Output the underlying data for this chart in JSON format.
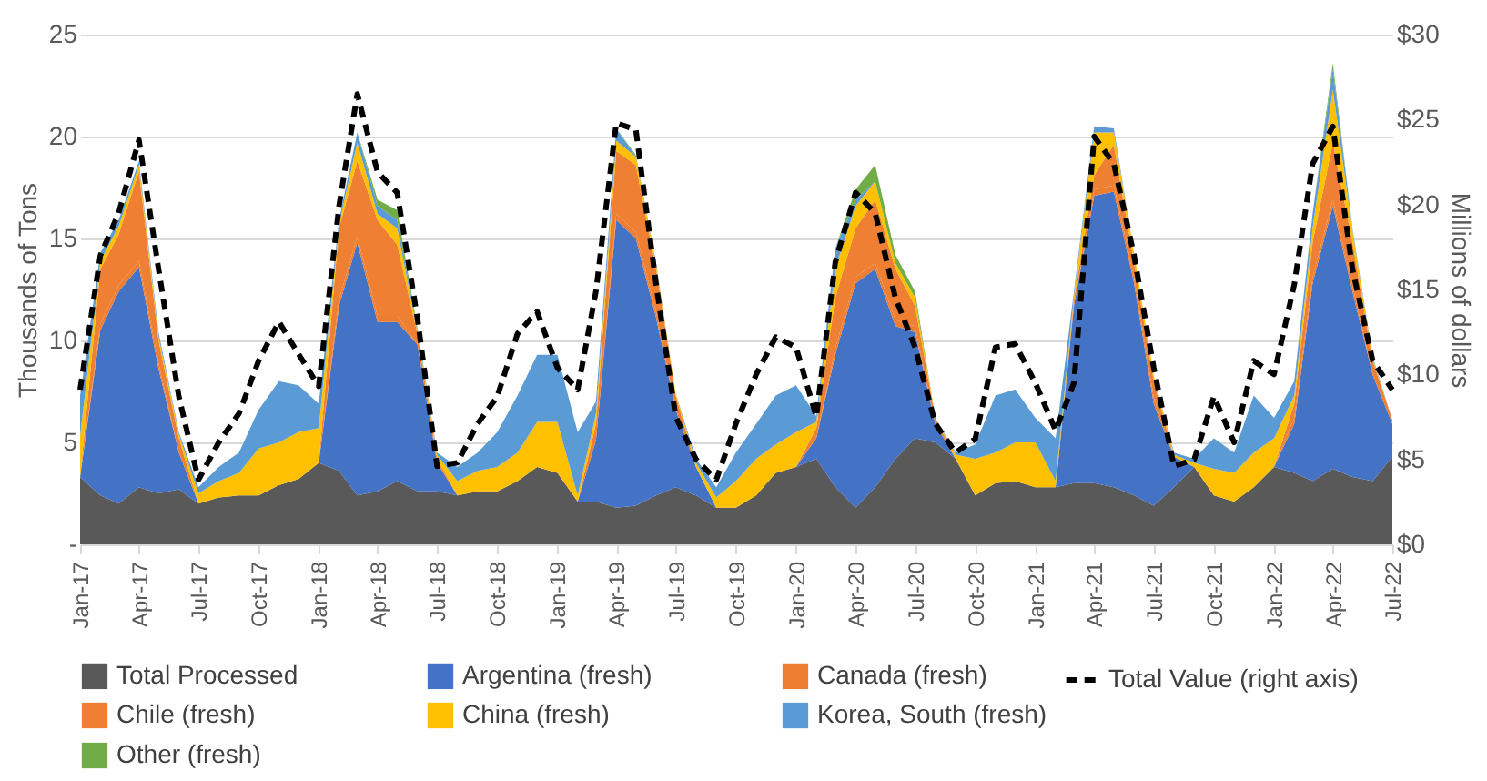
{
  "chart_data": {
    "type": "area",
    "stacked": true,
    "ylabel": "Thousands of Tons",
    "y2label": "Millions of dollars",
    "x": [
      "2017-01",
      "2017-02",
      "2017-03",
      "2017-04",
      "2017-05",
      "2017-06",
      "2017-07",
      "2017-08",
      "2017-09",
      "2017-10",
      "2017-11",
      "2017-12",
      "2018-01",
      "2018-02",
      "2018-03",
      "2018-04",
      "2018-05",
      "2018-06",
      "2018-07",
      "2018-08",
      "2018-09",
      "2018-10",
      "2018-11",
      "2018-12",
      "2019-01",
      "2019-02",
      "2019-03",
      "2019-04",
      "2019-05",
      "2019-06",
      "2019-07",
      "2019-08",
      "2019-09",
      "2019-10",
      "2019-11",
      "2019-12",
      "2020-01",
      "2020-02",
      "2020-03",
      "2020-04",
      "2020-05",
      "2020-06",
      "2020-07",
      "2020-08",
      "2020-09",
      "2020-10",
      "2020-11",
      "2020-12",
      "2021-01",
      "2021-02",
      "2021-03",
      "2021-04",
      "2021-05",
      "2021-06",
      "2021-07",
      "2021-08",
      "2021-09",
      "2021-10",
      "2021-11",
      "2021-12",
      "2022-01",
      "2022-02",
      "2022-03",
      "2022-04",
      "2022-05",
      "2022-06",
      "2022-07"
    ],
    "xlim": [
      "2017-01",
      "2022-07"
    ],
    "xticks": [
      {
        "value": "2017-01",
        "label": "Jan-17"
      },
      {
        "value": "2017-04",
        "label": "Apr-17"
      },
      {
        "value": "2017-07",
        "label": "Jul-17"
      },
      {
        "value": "2017-10",
        "label": "Oct-17"
      },
      {
        "value": "2018-01",
        "label": "Jan-18"
      },
      {
        "value": "2018-04",
        "label": "Apr-18"
      },
      {
        "value": "2018-07",
        "label": "Jul-18"
      },
      {
        "value": "2018-10",
        "label": "Oct-18"
      },
      {
        "value": "2019-01",
        "label": "Jan-19"
      },
      {
        "value": "2019-04",
        "label": "Apr-19"
      },
      {
        "value": "2019-07",
        "label": "Jul-19"
      },
      {
        "value": "2019-10",
        "label": "Oct-19"
      },
      {
        "value": "2020-01",
        "label": "Jan-20"
      },
      {
        "value": "2020-04",
        "label": "Apr-20"
      },
      {
        "value": "2020-07",
        "label": "Jul-20"
      },
      {
        "value": "2020-10",
        "label": "Oct-20"
      },
      {
        "value": "2021-01",
        "label": "Jan-21"
      },
      {
        "value": "2021-04",
        "label": "Apr-21"
      },
      {
        "value": "2021-07",
        "label": "Jul-21"
      },
      {
        "value": "2021-10",
        "label": "Oct-21"
      },
      {
        "value": "2022-01",
        "label": "Jan-22"
      },
      {
        "value": "2022-04",
        "label": "Apr-22"
      },
      {
        "value": "2022-07",
        "label": "Jul-22"
      }
    ],
    "ylim": [
      0,
      25
    ],
    "yticks": [
      {
        "value": 0,
        "label": "-"
      },
      5,
      10,
      15,
      20,
      25
    ],
    "y2lim": [
      0,
      30
    ],
    "y2ticks": [
      {
        "value": 0,
        "label": "$0"
      },
      {
        "value": 5,
        "label": "$5"
      },
      {
        "value": 10,
        "label": "$10"
      },
      {
        "value": 15,
        "label": "$15"
      },
      {
        "value": 20,
        "label": "$20"
      },
      {
        "value": 25,
        "label": "$25"
      },
      {
        "value": 30,
        "label": "$30"
      }
    ],
    "grid": "y",
    "legend": "bottom",
    "marker": "none",
    "series": [
      {
        "name": "Total Processed",
        "color": "#595959",
        "values": [
          3.3,
          2.4,
          2.0,
          2.8,
          2.5,
          2.7,
          2.0,
          2.3,
          2.4,
          2.4,
          2.9,
          3.2,
          4.0,
          3.6,
          2.4,
          2.6,
          3.1,
          2.6,
          2.6,
          2.4,
          2.6,
          2.6,
          3.1,
          3.8,
          3.5,
          2.1,
          2.1,
          1.8,
          1.9,
          2.4,
          2.8,
          2.4,
          1.8,
          1.8,
          2.4,
          3.5,
          3.8,
          4.2,
          2.8,
          1.8,
          2.8,
          4.2,
          5.2,
          5.0,
          4.2,
          2.4,
          3.0,
          3.1,
          2.8,
          2.8,
          3.0,
          3.0,
          2.8,
          2.4,
          1.9,
          2.8,
          3.8,
          2.4,
          2.1,
          2.8,
          3.8,
          3.5,
          3.1,
          3.7,
          3.3,
          3.1,
          4.3
        ]
      },
      {
        "name": "Argentina (fresh)",
        "color": "#4472c4",
        "values": [
          0,
          8.1,
          10.4,
          10.8,
          6.1,
          1.8,
          0,
          0,
          0,
          0,
          0,
          0,
          0,
          8.1,
          12.4,
          8.3,
          7.8,
          7.2,
          1.4,
          0,
          0,
          0,
          0,
          0,
          0,
          0,
          3.0,
          14.1,
          13.1,
          8.7,
          3.8,
          1.4,
          0,
          0,
          0,
          0,
          0,
          1.0,
          6.5,
          11.0,
          10.7,
          6.5,
          5.2,
          0.9,
          0,
          0,
          0,
          0,
          0,
          0,
          8.7,
          14.1,
          14.5,
          10.4,
          5.0,
          1.5,
          0,
          0,
          0,
          0,
          0,
          2.4,
          9.7,
          12.9,
          9.1,
          5.2,
          1.6
        ]
      },
      {
        "name": "Canada (fresh)",
        "color": "#ed7d31",
        "values": [
          0,
          0.3,
          0.3,
          0.3,
          0.3,
          0,
          0,
          0,
          0,
          0,
          0,
          0,
          0,
          0.3,
          0.3,
          0.3,
          0.3,
          0,
          0,
          0,
          0,
          0,
          0,
          0,
          0,
          0,
          0,
          0.3,
          0.3,
          0.3,
          0,
          0,
          0,
          0,
          0,
          0,
          0,
          0,
          0.3,
          0.3,
          0.3,
          0.3,
          0.3,
          0,
          0,
          0,
          0,
          0,
          0,
          0,
          0,
          0.3,
          0.3,
          0.3,
          0.3,
          0,
          0,
          0,
          0,
          0,
          0,
          0.3,
          0.3,
          0.3,
          0.3,
          0,
          0
        ]
      },
      {
        "name": "Chile (fresh)",
        "color": "#ee7f33",
        "values": [
          0,
          2.7,
          2.5,
          4.4,
          1.1,
          0.7,
          0,
          0,
          0,
          0,
          0,
          0,
          0,
          3.5,
          3.7,
          4.7,
          3.5,
          0.5,
          0.2,
          0,
          0,
          0,
          0,
          0,
          0,
          0,
          0.8,
          3.1,
          3.3,
          2.1,
          0.7,
          0,
          0,
          0,
          0,
          0,
          0,
          0.5,
          2.5,
          2.4,
          3.1,
          2.5,
          1.0,
          0.3,
          0,
          0,
          0,
          0,
          0,
          0,
          0.3,
          0.7,
          2.0,
          0.7,
          0.8,
          0,
          0,
          0,
          0,
          0,
          0,
          0.7,
          1.7,
          2.8,
          2.1,
          0.7,
          0.2
        ]
      },
      {
        "name": "China (fresh)",
        "color": "#ffc000",
        "values": [
          2.0,
          0.4,
          0.4,
          0.3,
          0.2,
          0.2,
          0.5,
          0.8,
          1.1,
          2.3,
          2.1,
          2.3,
          1.7,
          0.2,
          0.9,
          0.3,
          0.8,
          0.1,
          0.2,
          0.7,
          1.0,
          1.2,
          1.4,
          2.2,
          2.5,
          0.3,
          0.5,
          0.5,
          0.4,
          0.2,
          0.1,
          0.2,
          0.5,
          1.3,
          1.8,
          1.4,
          1.7,
          0.3,
          1.4,
          1.1,
          0.9,
          0.3,
          0.4,
          0,
          0.2,
          1.8,
          1.5,
          1.9,
          2.2,
          0.3,
          0.2,
          2.1,
          0.6,
          0.5,
          0.3,
          0.1,
          0.2,
          1.3,
          1.4,
          1.7,
          1.4,
          0.4,
          0.7,
          2.6,
          0.6,
          0.1,
          0
        ]
      },
      {
        "name": "Korea, South (fresh)",
        "color": "#5b9bd5",
        "values": [
          2.0,
          0.4,
          0.3,
          0.2,
          0.2,
          0.1,
          0.3,
          0.7,
          1.0,
          1.9,
          3.0,
          2.3,
          1.2,
          0.2,
          0.5,
          0.4,
          0.4,
          0.1,
          0.1,
          0.7,
          0.9,
          1.7,
          2.8,
          3.3,
          3.3,
          3.1,
          0.6,
          0.6,
          0,
          0.1,
          0,
          0.2,
          0.5,
          1.4,
          1.7,
          2.4,
          2.3,
          0.3,
          1.0,
          0.3,
          0,
          0,
          0,
          0,
          0.1,
          0.7,
          2.8,
          2.6,
          1.2,
          2.1,
          0.2,
          0.3,
          0.2,
          0,
          0,
          0.1,
          0.2,
          1.5,
          1.0,
          2.8,
          1.0,
          0.7,
          0.7,
          1.0,
          0.1,
          0.1,
          0
        ]
      },
      {
        "name": "Other (fresh)",
        "color": "#70ad47",
        "values": [
          0,
          0,
          0,
          0,
          0,
          0,
          0,
          0,
          0,
          0,
          0,
          0,
          0,
          0,
          0,
          0.3,
          0.5,
          0.1,
          0,
          0,
          0,
          0,
          0,
          0,
          0,
          0,
          0,
          0,
          0.1,
          0,
          0,
          0,
          0,
          0,
          0,
          0,
          0,
          0,
          0,
          0.5,
          0.8,
          0.4,
          0.3,
          0,
          0,
          0,
          0,
          0,
          0,
          0,
          0,
          0,
          0,
          0,
          0,
          0,
          0,
          0,
          0,
          0,
          0,
          0,
          0,
          0.3,
          0,
          0,
          0
        ]
      },
      {
        "name": "Total Value (right axis)",
        "type": "line",
        "axis": "y2",
        "color": "#000000",
        "line_style": "dashed",
        "values": [
          9.1,
          17.0,
          19.5,
          23.8,
          16.2,
          8.7,
          3.8,
          6.0,
          7.7,
          10.8,
          13.1,
          11.2,
          9.3,
          19.9,
          26.5,
          21.9,
          20.7,
          13.3,
          4.6,
          4.8,
          7.1,
          8.7,
          12.4,
          13.7,
          10.4,
          9.1,
          14.9,
          24.8,
          24.4,
          15.3,
          7.5,
          5.0,
          3.8,
          7.1,
          10.0,
          12.2,
          11.6,
          7.5,
          16.6,
          20.7,
          19.5,
          14.5,
          11.6,
          7.1,
          5.4,
          6.2,
          11.6,
          11.8,
          9.5,
          6.7,
          9.5,
          24.0,
          22.4,
          17.0,
          10.4,
          4.6,
          5.0,
          8.7,
          6.0,
          10.8,
          10.0,
          15.3,
          22.4,
          24.6,
          16.2,
          10.8,
          9.1
        ]
      }
    ]
  }
}
